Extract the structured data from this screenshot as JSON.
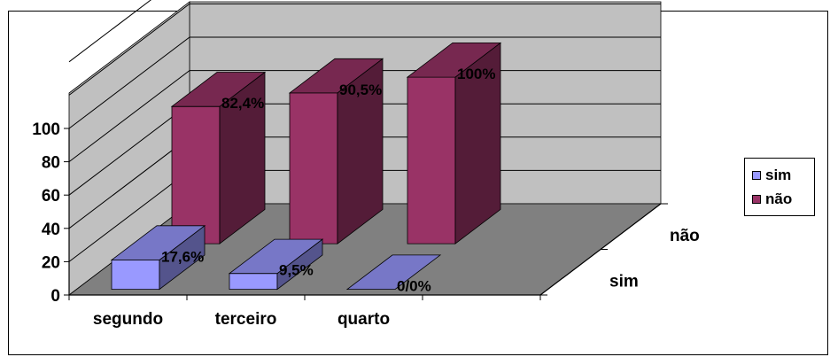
{
  "chart_data": {
    "type": "bar",
    "variant": "3d-clustered-depth",
    "categories": [
      "segundo",
      "terceiro",
      "quarto"
    ],
    "depth_categories": [
      "sim",
      "não"
    ],
    "series": [
      {
        "name": "sim",
        "values": [
          17.6,
          9.5,
          0
        ],
        "labels": [
          "17,6%",
          "9,5%",
          "0/0%"
        ],
        "color": "#9999ff"
      },
      {
        "name": "não",
        "values": [
          82.4,
          90.5,
          100
        ],
        "labels": [
          "82,4%",
          "90,5%",
          "100%"
        ],
        "color": "#993366"
      }
    ],
    "y_ticks": [
      "0",
      "20",
      "40",
      "60",
      "80",
      "100"
    ],
    "ylim": [
      0,
      100
    ],
    "grid": true,
    "legend_position": "right",
    "colors": {
      "wall": "#c0c0c0",
      "floor": "#808080"
    }
  },
  "legend": {
    "items": [
      {
        "label": "sim",
        "color": "#9999ff"
      },
      {
        "label": "não",
        "color": "#993366"
      }
    ]
  }
}
